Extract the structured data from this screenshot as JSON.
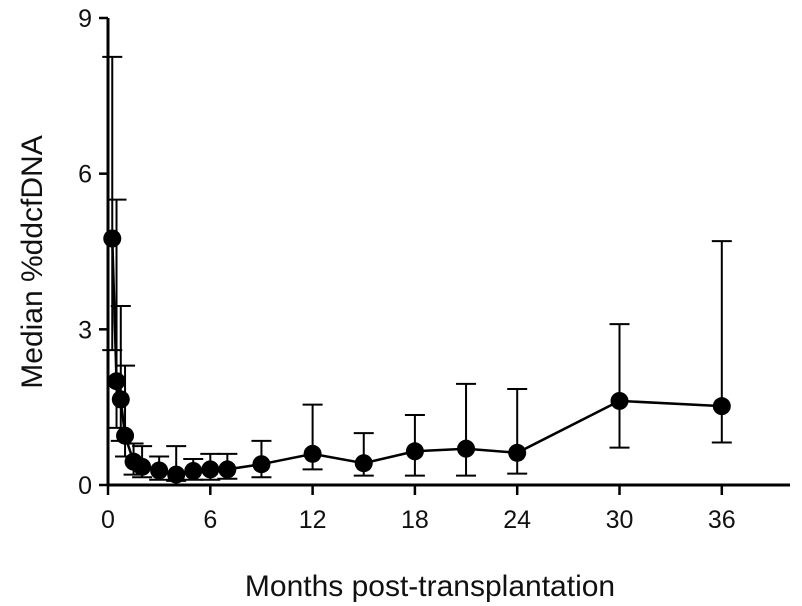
{
  "chart_data": {
    "type": "line",
    "xlabel": "Months post-transplantation",
    "ylabel": "Median %ddcfDNA",
    "xlim": [
      0,
      40
    ],
    "ylim": [
      0,
      9
    ],
    "x_ticks": [
      0,
      6,
      12,
      18,
      24,
      30,
      36
    ],
    "y_ticks": [
      0,
      3,
      6,
      9
    ],
    "grid": false,
    "legend": "none",
    "series": [
      {
        "marker": "circle",
        "color": "#000000",
        "points": [
          {
            "x": 0.25,
            "y": 4.75,
            "lo": 2.6,
            "hi": 8.25
          },
          {
            "x": 0.5,
            "y": 2.0,
            "lo": 1.1,
            "hi": 5.5
          },
          {
            "x": 0.75,
            "y": 1.65,
            "lo": 0.85,
            "hi": 3.45
          },
          {
            "x": 1.0,
            "y": 0.95,
            "lo": 0.55,
            "hi": 2.3
          },
          {
            "x": 1.5,
            "y": 0.45,
            "lo": 0.2,
            "hi": 0.8
          },
          {
            "x": 2.0,
            "y": 0.35,
            "lo": 0.15,
            "hi": 0.75
          },
          {
            "x": 3.0,
            "y": 0.28,
            "lo": 0.1,
            "hi": 0.55
          },
          {
            "x": 4.0,
            "y": 0.2,
            "lo": 0.08,
            "hi": 0.75
          },
          {
            "x": 5.0,
            "y": 0.27,
            "lo": 0.1,
            "hi": 0.5
          },
          {
            "x": 6.0,
            "y": 0.3,
            "lo": 0.1,
            "hi": 0.6
          },
          {
            "x": 7.0,
            "y": 0.3,
            "lo": 0.12,
            "hi": 0.6
          },
          {
            "x": 9.0,
            "y": 0.4,
            "lo": 0.15,
            "hi": 0.85
          },
          {
            "x": 12.0,
            "y": 0.6,
            "lo": 0.3,
            "hi": 1.55
          },
          {
            "x": 15.0,
            "y": 0.42,
            "lo": 0.18,
            "hi": 1.0
          },
          {
            "x": 18.0,
            "y": 0.65,
            "lo": 0.18,
            "hi": 1.35
          },
          {
            "x": 21.0,
            "y": 0.7,
            "lo": 0.18,
            "hi": 1.95
          },
          {
            "x": 24.0,
            "y": 0.62,
            "lo": 0.22,
            "hi": 1.85
          },
          {
            "x": 30.0,
            "y": 1.62,
            "lo": 0.72,
            "hi": 3.1
          },
          {
            "x": 36.0,
            "y": 1.52,
            "lo": 0.82,
            "hi": 4.7
          }
        ]
      }
    ]
  }
}
